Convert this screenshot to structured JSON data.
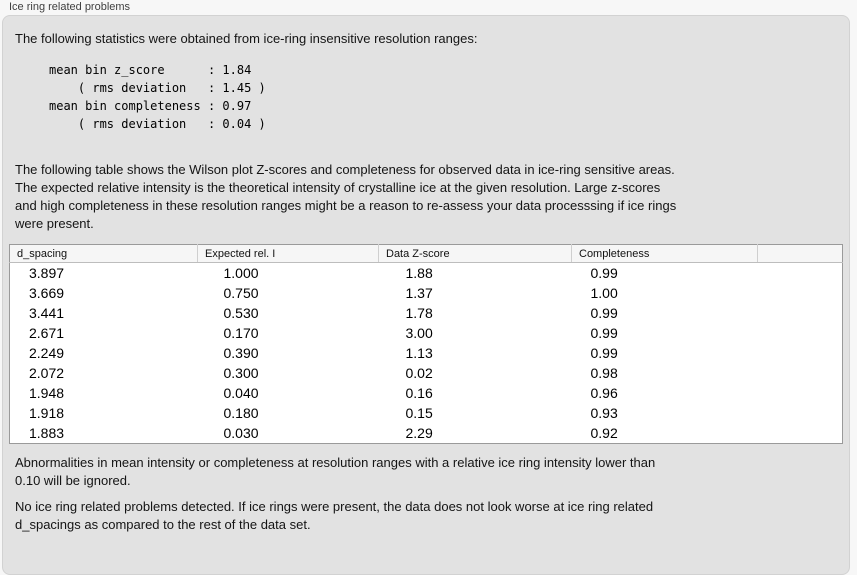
{
  "group": {
    "title": "Ice ring related problems"
  },
  "content": {
    "intro": "The following statistics were obtained from ice-ring insensitive resolution ranges:",
    "stats_block": "mean bin z_score      : 1.84\n    ( rms deviation   : 1.45 )\nmean bin completeness : 0.97\n    ( rms deviation   : 0.04 )",
    "table_caption": "The following table shows the Wilson plot Z-scores and completeness for observed data in ice-ring sensitive areas.\nThe expected relative intensity is the theoretical intensity of crystalline ice at the given resolution. Large z-scores\nand high completeness in these resolution ranges might be a reason to re-assess your data processsing if ice rings\nwere present.",
    "ignore_note": "Abnormalities in mean intensity or completeness at resolution ranges with a relative ice ring intensity lower than\n0.10 will be ignored.",
    "conclusion": "No ice ring related problems detected. If ice rings were present, the data does not look worse at ice ring related\nd_spacings as compared to the rest of the data set."
  },
  "table": {
    "columns": [
      "d_spacing",
      "Expected rel. I",
      "Data Z-score",
      "Completeness"
    ],
    "rows": [
      [
        "3.897",
        "1.000",
        "1.88",
        "0.99"
      ],
      [
        "3.669",
        "0.750",
        "1.37",
        "1.00"
      ],
      [
        "3.441",
        "0.530",
        "1.78",
        "0.99"
      ],
      [
        "2.671",
        "0.170",
        "3.00",
        "0.99"
      ],
      [
        "2.249",
        "0.390",
        "1.13",
        "0.99"
      ],
      [
        "2.072",
        "0.300",
        "0.02",
        "0.98"
      ],
      [
        "1.948",
        "0.040",
        "0.16",
        "0.96"
      ],
      [
        "1.918",
        "0.180",
        "0.15",
        "0.93"
      ],
      [
        "1.883",
        "0.030",
        "2.29",
        "0.92"
      ]
    ]
  }
}
